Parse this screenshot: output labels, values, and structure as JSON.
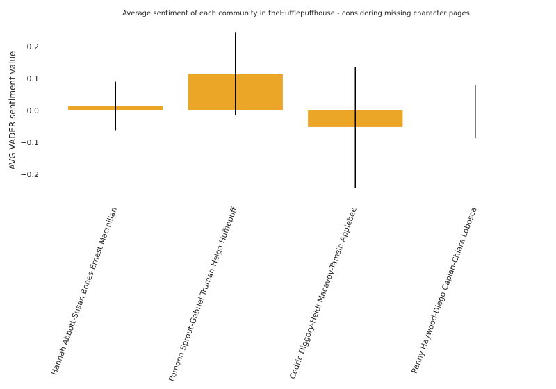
{
  "chart_data": {
    "type": "bar",
    "title": "Average sentiment of each community in theHufflepuffhouse - considering missing character pages",
    "xlabel": "",
    "ylabel": "AVG VADER sentiment value",
    "categories": [
      "Hannah Abbott-Susan Bones-Ernest Macmillan",
      "Pomona Sprout-Gabriel Truman-Helga Hufflepuff",
      "Cedric Diggory-Heidi Macavoy-Tamsin Applebee",
      "Penny Haywood-Diego Caplan-Chiara Lobosca"
    ],
    "values": [
      0.013,
      0.115,
      -0.052,
      0.0
    ],
    "error_low": [
      -0.062,
      -0.015,
      -0.243,
      -0.085
    ],
    "error_high": [
      0.09,
      0.245,
      0.135,
      0.08
    ],
    "ylim": [
      -0.25,
      0.25
    ],
    "yticks": [
      0.2,
      0.1,
      0.0,
      -0.1,
      -0.2
    ],
    "ytick_labels": [
      "0.2",
      "0.1",
      "0.0",
      "−0.1",
      "−0.2"
    ],
    "bar_color": "#eba527",
    "error_color": "#000000",
    "grid": false,
    "legend": false
  }
}
